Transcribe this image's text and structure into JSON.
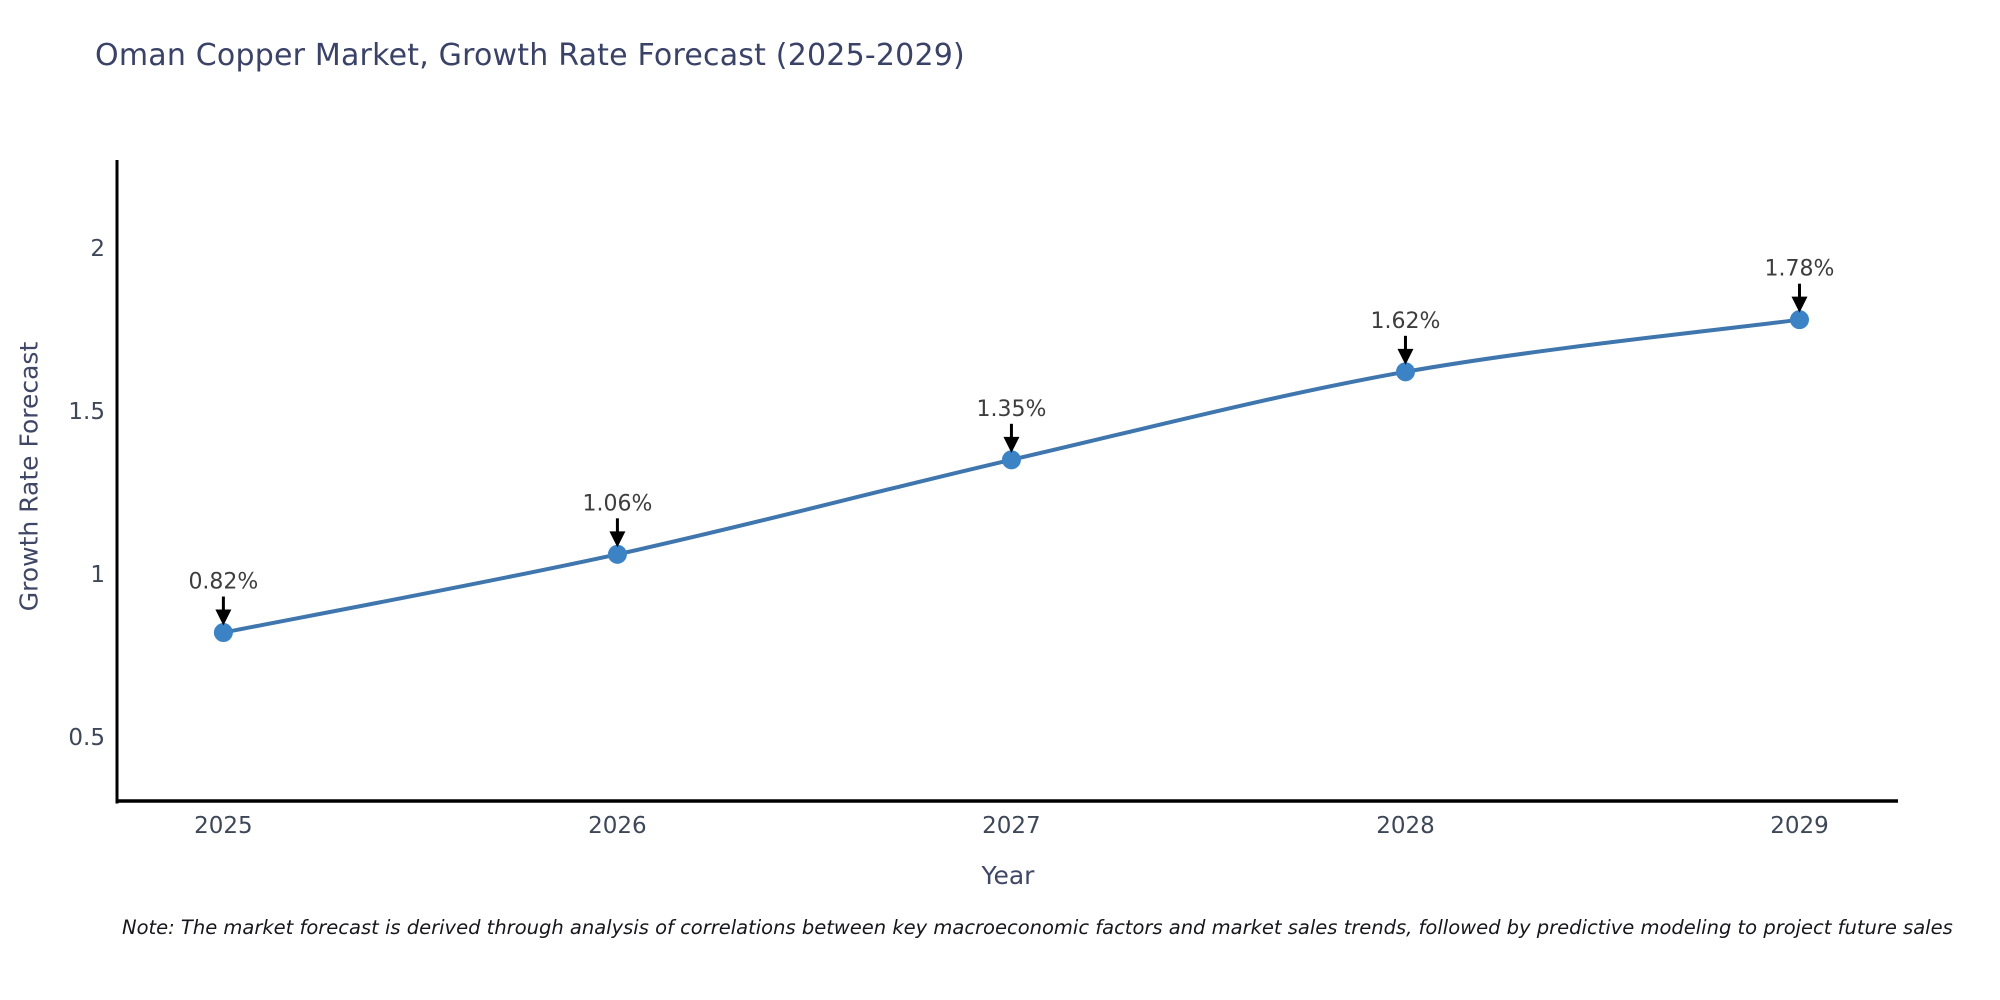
{
  "header": {
    "title": "Oman Copper Market, Growth Rate Forecast (2025-2029)"
  },
  "footnote": "Note: The market forecast is derived through analysis of correlations between key macroeconomic factors and market sales trends, followed by predictive modeling to project future sales",
  "chart_data": {
    "type": "line",
    "title": "Oman Copper Market, Growth Rate Forecast (2025-2029)",
    "xlabel": "Year",
    "ylabel": "Growth Rate Forecast",
    "x": [
      2025,
      2026,
      2027,
      2028,
      2029
    ],
    "values": [
      0.82,
      1.06,
      1.35,
      1.62,
      1.78
    ],
    "point_labels": [
      "0.82%",
      "1.06%",
      "1.35%",
      "1.62%",
      "1.78%"
    ],
    "x_tick_labels": [
      "2025",
      "2026",
      "2027",
      "2028",
      "2029"
    ],
    "y_ticks": [
      0.5,
      1,
      1.5,
      2
    ],
    "y_tick_labels": [
      "0.5",
      "1",
      "1.5",
      "2"
    ],
    "xlim": [
      2024.73,
      2029.25
    ],
    "ylim": [
      0.3,
      2.27
    ],
    "grid": false,
    "legend": false,
    "curve_smoothing": true,
    "annotation_arrows": true,
    "colors": {
      "line": "#3e76ad",
      "marker": "#3c83c5",
      "spine": "#000000",
      "arrow": "#000000",
      "title_text": "#3a4268",
      "axis_title_text": "#3f4666",
      "tick_text": "#3d4758",
      "annotation_text": "#3d3d3d",
      "background": "#ffffff"
    }
  }
}
